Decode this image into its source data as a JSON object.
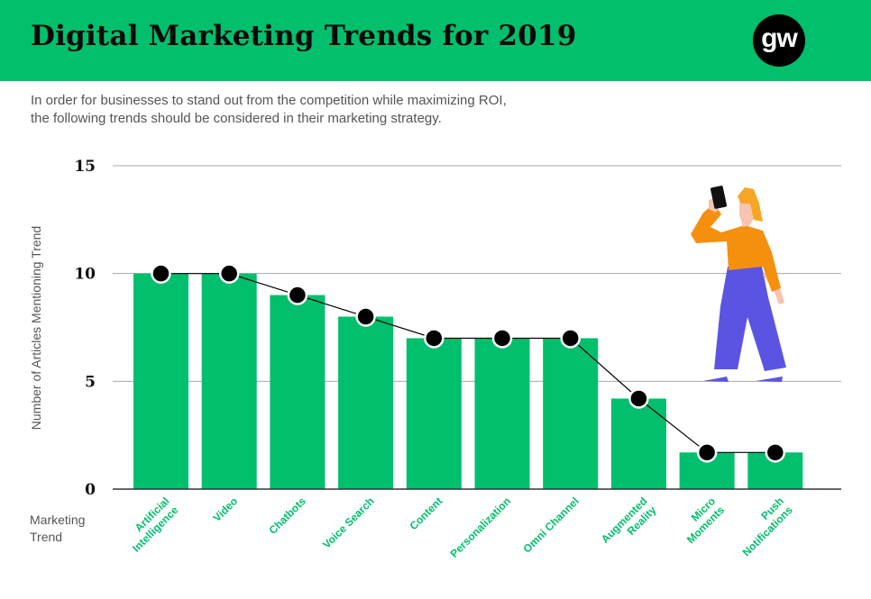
{
  "header": {
    "title": "Digital Marketing Trends for 2019",
    "logo_text": "gw",
    "background_color": "#01bf6c"
  },
  "subtitle": {
    "line1": "In order for businesses to stand out from the competition while maximizing ROI,",
    "line2": "the following trends should be considered in their marketing strategy."
  },
  "chart_data": {
    "type": "bar",
    "title": "",
    "xlabel": "Marketing Trend",
    "ylabel": "Number of Articles Mentioning Trend",
    "ylim": [
      0,
      15
    ],
    "yticks": [
      0,
      5,
      10,
      15
    ],
    "grid": true,
    "categories": [
      [
        "Artificial",
        "Intelligence"
      ],
      [
        "Video"
      ],
      [
        "Chatbots"
      ],
      [
        "Voice Search"
      ],
      [
        "Content"
      ],
      [
        "Personalization"
      ],
      [
        "Omni Channel"
      ],
      [
        "Augmented",
        "Reality"
      ],
      [
        "Micro",
        "Moments"
      ],
      [
        "Push",
        "Notifications"
      ]
    ],
    "values": [
      10,
      10,
      9,
      8,
      7,
      7,
      7,
      4.2,
      1.7,
      1.7
    ],
    "overlay": {
      "type": "line",
      "values": [
        10,
        10,
        9,
        8,
        7,
        7,
        7,
        4.2,
        1.7,
        1.7
      ]
    },
    "colors": {
      "bar": "#01bf6c",
      "label": "#01bf6c",
      "marker": "#000000",
      "grid": "#a8a8a8",
      "axis": "#333333"
    }
  },
  "illustration": {
    "name": "woman-with-phone",
    "colors": {
      "top": "#f5900f",
      "pants": "#5b54e3",
      "hair": "#f5a623",
      "skin": "#f7c4b0"
    }
  }
}
